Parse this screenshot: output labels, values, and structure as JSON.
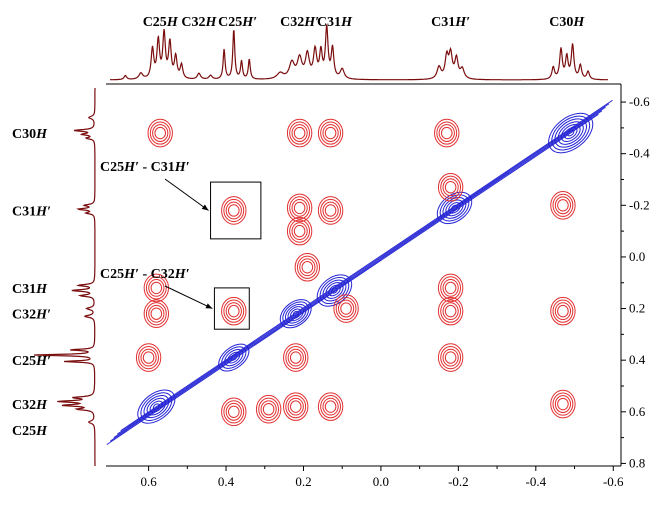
{
  "chart_data": {
    "type": "contour",
    "x_axis": {
      "ticks": [
        0.6,
        0.4,
        0.2,
        0.0,
        -0.2,
        -0.4,
        -0.6
      ],
      "tick_labels": [
        "0.6",
        "0.4",
        "0.2",
        "0.0",
        "-0.2",
        "-0.4",
        "-0.6"
      ],
      "range": [
        0.71,
        -0.62
      ],
      "reversed": true
    },
    "y_axis": {
      "ticks": [
        -0.6,
        -0.4,
        -0.2,
        0.0,
        0.2,
        0.4,
        0.6,
        0.8
      ],
      "tick_labels": [
        "-0.6",
        "-0.4",
        "-0.2",
        "0.0",
        "0.2",
        "0.4",
        "0.6",
        "0.8"
      ],
      "range": [
        -0.67,
        0.81
      ],
      "position": "right"
    },
    "top_peak_labels": [
      {
        "base": "C25",
        "ital": "H",
        "x": 0.57
      },
      {
        "base": "C32",
        "ital": "H",
        "x": 0.47
      },
      {
        "base": "C25",
        "ital": "H′",
        "x": 0.37
      },
      {
        "base": "C32",
        "ital": "H′",
        "x": 0.21
      },
      {
        "base": "C31",
        "ital": "H",
        "x": 0.12
      },
      {
        "base": "C31",
        "ital": "H′",
        "x": -0.18
      },
      {
        "base": "C30",
        "ital": "H",
        "x": -0.48
      }
    ],
    "left_peak_labels": [
      {
        "base": "C30",
        "ital": "H",
        "y": -0.48
      },
      {
        "base": "C31",
        "ital": "H′",
        "y": -0.18
      },
      {
        "base": "C31",
        "ital": "H",
        "y": 0.12
      },
      {
        "base": "C32",
        "ital": "H′",
        "y": 0.22
      },
      {
        "base": "C25",
        "ital": "H′",
        "y": 0.4
      },
      {
        "base": "C32",
        "ital": "H",
        "y": 0.57
      },
      {
        "base": "C25",
        "ital": "H",
        "y": 0.67
      }
    ],
    "annotations": [
      {
        "p1": "C25",
        "i1": "H′",
        "sep": " - ",
        "p2": "C31",
        "i2": "H′",
        "box": {
          "x": [
            0.44,
            0.31
          ],
          "y": [
            -0.29,
            -0.07
          ]
        },
        "arrow_to": [
          0.42,
          -0.2
        ]
      },
      {
        "p1": "C25",
        "i1": "H′",
        "sep": " - ",
        "p2": "C32",
        "i2": "H′",
        "box": {
          "x": [
            0.43,
            0.34
          ],
          "y": [
            0.12,
            0.28
          ]
        },
        "arrow_to": [
          0.42,
          0.2
        ]
      }
    ],
    "diagonal_peaks": [
      {
        "x": 0.58,
        "y": 0.58,
        "rx": 0.055,
        "ry": 0.05,
        "n": 6
      },
      {
        "x": 0.38,
        "y": 0.39,
        "rx": 0.045,
        "ry": 0.04,
        "n": 5
      },
      {
        "x": 0.22,
        "y": 0.22,
        "rx": 0.045,
        "ry": 0.045,
        "n": 6
      },
      {
        "x": 0.12,
        "y": 0.13,
        "rx": 0.05,
        "ry": 0.05,
        "n": 6
      },
      {
        "x": -0.19,
        "y": -0.19,
        "rx": 0.05,
        "ry": 0.05,
        "n": 6
      },
      {
        "x": -0.49,
        "y": -0.48,
        "rx": 0.065,
        "ry": 0.06,
        "n": 7
      }
    ],
    "cross_peaks": [
      {
        "x": 0.57,
        "y": -0.48
      },
      {
        "x": 0.21,
        "y": -0.48
      },
      {
        "x": 0.13,
        "y": -0.48
      },
      {
        "x": -0.17,
        "y": -0.48
      },
      {
        "x": 0.38,
        "y": -0.18
      },
      {
        "x": 0.21,
        "y": -0.19
      },
      {
        "x": 0.13,
        "y": -0.18
      },
      {
        "x": 0.21,
        "y": -0.1
      },
      {
        "x": 0.58,
        "y": 0.12
      },
      {
        "x": -0.18,
        "y": 0.12
      },
      {
        "x": 0.58,
        "y": 0.22
      },
      {
        "x": 0.38,
        "y": 0.21
      },
      {
        "x": 0.09,
        "y": 0.2
      },
      {
        "x": -0.18,
        "y": 0.21
      },
      {
        "x": -0.47,
        "y": 0.21
      },
      {
        "x": 0.6,
        "y": 0.39
      },
      {
        "x": 0.22,
        "y": 0.39
      },
      {
        "x": -0.18,
        "y": 0.39
      },
      {
        "x": 0.38,
        "y": 0.6
      },
      {
        "x": 0.29,
        "y": 0.59
      },
      {
        "x": 0.22,
        "y": 0.58
      },
      {
        "x": 0.13,
        "y": 0.58
      },
      {
        "x": -0.47,
        "y": 0.57
      },
      {
        "x": 0.19,
        "y": 0.04
      },
      {
        "x": -0.18,
        "y": -0.27
      },
      {
        "x": -0.47,
        "y": -0.2
      }
    ],
    "colors": {
      "positive": "#2323d4",
      "negative": "#e23030",
      "projection": "#7a0d0d",
      "axis": "#000000"
    }
  }
}
